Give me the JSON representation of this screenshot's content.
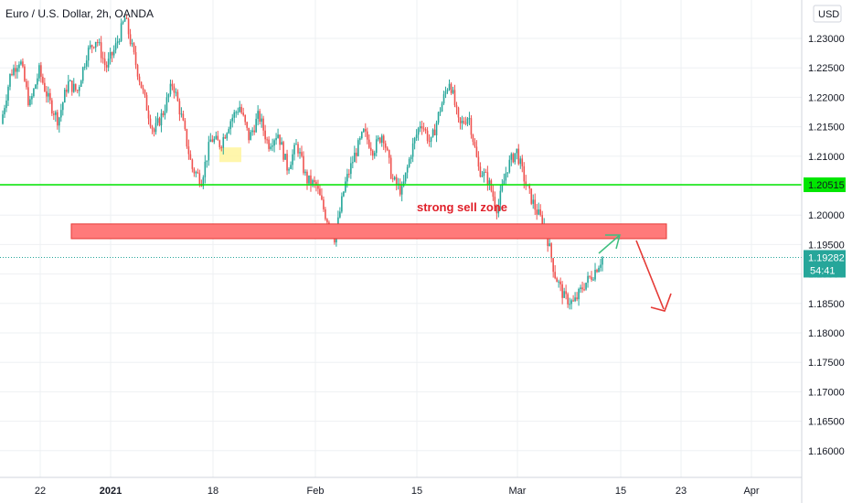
{
  "chart_data": {
    "type": "candlestick",
    "title": "Euro / U.S. Dollar, 2h, OANDA",
    "currency_label": "USD",
    "y_ticks": [
      1.23,
      1.225,
      1.22,
      1.215,
      1.21,
      1.205,
      1.2,
      1.195,
      1.19,
      1.185,
      1.18,
      1.175,
      1.17,
      1.165,
      1.16
    ],
    "y_tick_labels": [
      "1.23000",
      "1.22500",
      "1.22000",
      "1.21500",
      "1.21000",
      "1.20500",
      "1.20000",
      "1.19500",
      "1.19000",
      "1.18500",
      "1.18000",
      "1.17500",
      "1.17000",
      "1.16500",
      "1.16000"
    ],
    "x_tick_labels": [
      {
        "label": "22",
        "bold": false
      },
      {
        "label": "2021",
        "bold": true
      },
      {
        "label": "18",
        "bold": false
      },
      {
        "label": "Feb",
        "bold": false
      },
      {
        "label": "15",
        "bold": false
      },
      {
        "label": "Mar",
        "bold": false
      },
      {
        "label": "15",
        "bold": false
      },
      {
        "label": "23",
        "bold": false
      },
      {
        "label": "Apr",
        "bold": false
      }
    ],
    "price_path": [
      1.2155,
      1.224,
      1.2265,
      1.2185,
      1.2245,
      1.2195,
      1.216,
      1.2225,
      1.221,
      1.2275,
      1.23,
      1.225,
      1.2285,
      1.2335,
      1.2265,
      1.22,
      1.214,
      1.2175,
      1.2225,
      1.216,
      1.208,
      1.206,
      1.213,
      1.212,
      1.216,
      1.2185,
      1.213,
      1.217,
      1.212,
      1.214,
      1.208,
      1.212,
      1.206,
      1.205,
      1.2,
      1.196,
      1.205,
      1.21,
      1.214,
      1.211,
      1.214,
      1.206,
      1.204,
      1.211,
      1.216,
      1.212,
      1.218,
      1.223,
      1.215,
      1.217,
      1.208,
      1.206,
      1.201,
      1.208,
      1.211,
      1.205,
      1.201,
      1.198,
      1.19,
      1.186,
      1.185,
      1.188,
      1.19,
      1.1928
    ],
    "horizontal_line": {
      "value": 1.20515,
      "label": "1.20515",
      "color": "#00e600"
    },
    "zone": {
      "low": 1.196,
      "high": 1.1985,
      "label": "strong sell zone",
      "color": "#ff7a7a"
    },
    "highlight": {
      "low": 1.209,
      "high": 1.2115,
      "color": "#fff59d"
    },
    "last_price": {
      "value": 1.19282,
      "label": "1.19282",
      "countdown": "54:41",
      "color": "#26a69a"
    },
    "colors": {
      "up": "#26a69a",
      "down": "#ef5350",
      "grid": "#eef0f3",
      "axis": "#131722"
    }
  }
}
